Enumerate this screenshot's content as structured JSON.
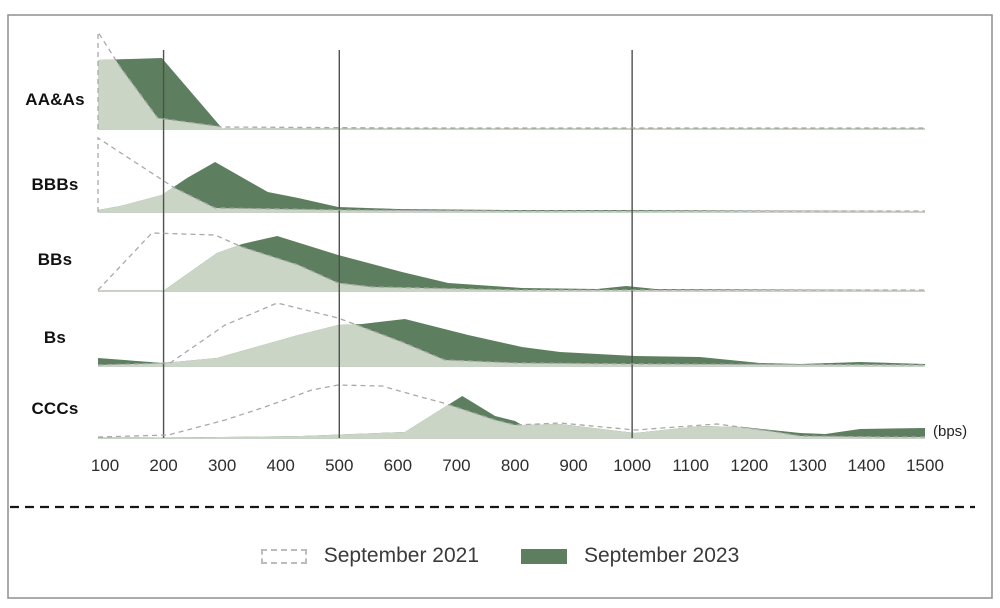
{
  "legend": {
    "items": [
      {
        "label": "September 2021",
        "swatch": "dashed"
      },
      {
        "label": "September 2023",
        "swatch": "solid"
      }
    ]
  },
  "colors": {
    "dark_green": "#5d7f5f",
    "light_green": "#cbd5c5",
    "dashed_line": "#a9a9a9",
    "gridline": "#4f4f4f",
    "row_baseline": "#a9b6a5",
    "frame": "#8f8f8f",
    "separator": "#151515"
  },
  "axis": {
    "ticks": [
      100,
      200,
      300,
      400,
      500,
      600,
      700,
      800,
      900,
      1000,
      1100,
      1200,
      1300,
      1400,
      1500
    ],
    "unit_label": "(bps)"
  },
  "chart_data": {
    "type": "area",
    "subtype": "ridgeline-distributions-overlap",
    "x_unit": "bps",
    "x_range": [
      88,
      1500
    ],
    "gridlines_at": [
      200,
      500,
      1000
    ],
    "legend_position": "bottom-center",
    "series_names": [
      "September 2021",
      "September 2023"
    ],
    "note": "heights are relative density in px; sept2021 drawn as gray dashed outline, sept2023 as dark green fill, overlap (pointwise minimum) as light sage fill",
    "rows": [
      {
        "label": "AA&As",
        "sept2021": [
          [
            88,
            97
          ],
          [
            126,
            62
          ],
          [
            190,
            11
          ],
          [
            301,
            2
          ],
          [
            600,
            1
          ],
          [
            1500,
            1
          ]
        ],
        "sept2023": [
          [
            88,
            69
          ],
          [
            197,
            71
          ],
          [
            301,
            0
          ],
          [
            1500,
            0
          ]
        ]
      },
      {
        "label": "BBBs",
        "sept2021": [
          [
            88,
            74
          ],
          [
            219,
            24
          ],
          [
            288,
            4
          ],
          [
            500,
            2
          ],
          [
            800,
            1
          ],
          [
            1500,
            1
          ]
        ],
        "sept2023": [
          [
            88,
            2
          ],
          [
            126,
            6
          ],
          [
            197,
            17
          ],
          [
            240,
            34
          ],
          [
            288,
            50
          ],
          [
            378,
            20
          ],
          [
            430,
            14
          ],
          [
            498,
            5
          ],
          [
            600,
            3
          ],
          [
            800,
            2
          ],
          [
            1005,
            2
          ],
          [
            1500,
            1
          ]
        ]
      },
      {
        "label": "BBs",
        "sept2021": [
          [
            88,
            1
          ],
          [
            180,
            58
          ],
          [
            288,
            56
          ],
          [
            334,
            44
          ],
          [
            430,
            26
          ],
          [
            498,
            8
          ],
          [
            556,
            4
          ],
          [
            800,
            1
          ],
          [
            1500,
            1
          ]
        ],
        "sept2023": [
          [
            88,
            0
          ],
          [
            199,
            0
          ],
          [
            291,
            38
          ],
          [
            334,
            47
          ],
          [
            394,
            55
          ],
          [
            498,
            36
          ],
          [
            607,
            19
          ],
          [
            686,
            8
          ],
          [
            812,
            3
          ],
          [
            940,
            2
          ],
          [
            990,
            5
          ],
          [
            1040,
            2
          ],
          [
            1500,
            1
          ]
        ]
      },
      {
        "label": "Bs",
        "sept2021": [
          [
            88,
            1
          ],
          [
            211,
            3
          ],
          [
            305,
            41
          ],
          [
            394,
            63
          ],
          [
            498,
            48
          ],
          [
            539,
            39
          ],
          [
            607,
            24
          ],
          [
            680,
            6
          ],
          [
            800,
            3
          ],
          [
            1000,
            2
          ],
          [
            1500,
            1
          ]
        ],
        "sept2023": [
          [
            88,
            8
          ],
          [
            199,
            3
          ],
          [
            291,
            8
          ],
          [
            351,
            18
          ],
          [
            430,
            31
          ],
          [
            498,
            41
          ],
          [
            539,
            42
          ],
          [
            612,
            47
          ],
          [
            720,
            31
          ],
          [
            812,
            19
          ],
          [
            877,
            14
          ],
          [
            1005,
            10
          ],
          [
            1116,
            9
          ],
          [
            1218,
            3
          ],
          [
            1287,
            2
          ],
          [
            1389,
            4
          ],
          [
            1500,
            2
          ]
        ]
      },
      {
        "label": "CCCs",
        "sept2021": [
          [
            88,
            1
          ],
          [
            208,
            3
          ],
          [
            305,
            18
          ],
          [
            373,
            31
          ],
          [
            453,
            48
          ],
          [
            498,
            53
          ],
          [
            573,
            52
          ],
          [
            627,
            43
          ],
          [
            678,
            35
          ],
          [
            766,
            18
          ],
          [
            800,
            13
          ],
          [
            877,
            15
          ],
          [
            1005,
            8
          ],
          [
            1145,
            14
          ],
          [
            1235,
            7
          ],
          [
            1287,
            2
          ],
          [
            1423,
            1
          ],
          [
            1500,
            1
          ]
        ],
        "sept2023": [
          [
            88,
            0
          ],
          [
            300,
            1
          ],
          [
            436,
            2
          ],
          [
            612,
            6
          ],
          [
            680,
            31
          ],
          [
            710,
            42
          ],
          [
            766,
            22
          ],
          [
            800,
            17
          ],
          [
            812,
            13
          ],
          [
            877,
            14
          ],
          [
            1005,
            5
          ],
          [
            1116,
            12
          ],
          [
            1190,
            11
          ],
          [
            1287,
            5
          ],
          [
            1330,
            4
          ],
          [
            1389,
            9
          ],
          [
            1500,
            10
          ]
        ]
      }
    ]
  }
}
